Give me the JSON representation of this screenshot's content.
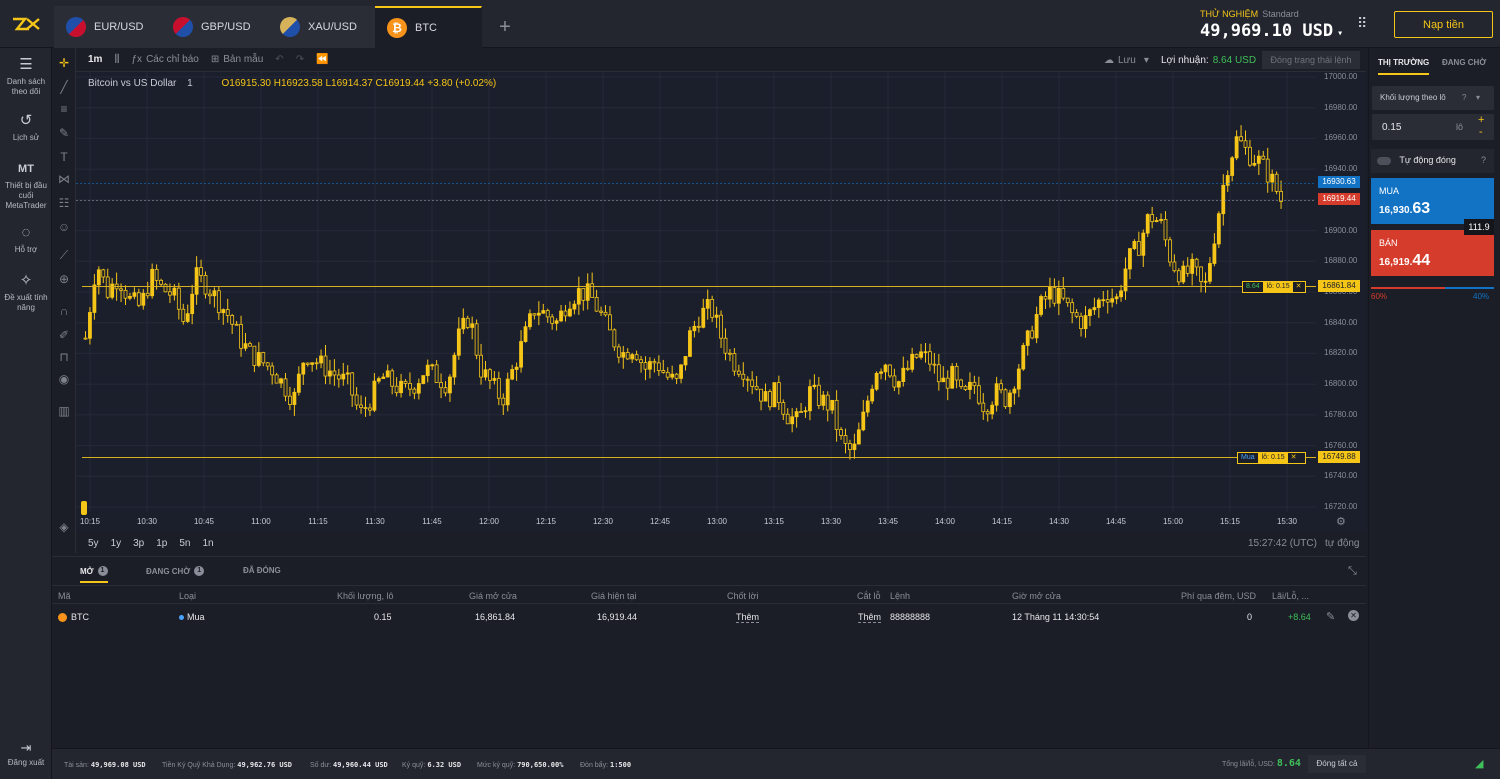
{
  "tabs": [
    {
      "label": "EUR/USD",
      "icon": "eu-us-flag-icon"
    },
    {
      "label": "GBP/USD",
      "icon": "uk-us-flag-icon"
    },
    {
      "label": "XAU/USD",
      "icon": "gold-us-flag-icon"
    },
    {
      "label": "BTC",
      "icon": "bitcoin-icon"
    }
  ],
  "account": {
    "mode": "THỬ NGHIỆM",
    "type": "Standard",
    "balance": "49,969.10 USD",
    "deposit_label": "Nạp tiền"
  },
  "nav": {
    "watchlist": "Danh sách theo dõi",
    "history": "Lịch sử",
    "mt_abbr": "MT",
    "mt_label": "Thiết bị đầu cuối MetaTrader",
    "support": "Hỗ trợ",
    "suggest": "Đề xuất tính năng",
    "logout": "Đăng xuất"
  },
  "toolbar": {
    "timeframe": "1m",
    "indicators": "Các chỉ báo",
    "templates": "Bản mẫu",
    "save": "Lưu",
    "profit_label": "Lợi nhuận:",
    "profit_value": "8.64 USD",
    "close_status": "Đóng trạng thái lệnh"
  },
  "chart_data": {
    "type": "candlestick",
    "title": "Bitcoin vs US Dollar",
    "interval": "1",
    "ohlc": {
      "o": "O16915.30",
      "h": "H16923.58",
      "l": "L16914.37",
      "c": "C16919.44",
      "chg": "+3.80 (+0.02%)"
    },
    "y_ticks": [
      "17000.00",
      "16980.00",
      "16960.00",
      "16940.00",
      "16920.00",
      "16900.00",
      "16880.00",
      "16860.00",
      "16840.00",
      "16820.00",
      "16800.00",
      "16780.00",
      "16760.00",
      "16740.00",
      "16720.00"
    ],
    "ylim": [
      16720,
      17000
    ],
    "x_ticks": [
      "10:15",
      "10:30",
      "10:45",
      "11:00",
      "11:15",
      "11:30",
      "11:45",
      "12:00",
      "12:15",
      "12:30",
      "12:45",
      "13:00",
      "13:15",
      "13:30",
      "13:45",
      "14:00",
      "14:15",
      "14:30",
      "14:45",
      "15:00",
      "15:15",
      "15:30"
    ],
    "bid_label": "16930.63",
    "ask_label": "16919.44",
    "tp_line": "16861.84",
    "entry_line": "16749.88",
    "tp_tag": {
      "profit": "8.64",
      "lot": "lô: 0.15"
    },
    "entry_tag": {
      "side": "Mua",
      "lot": "lô: 0.15"
    },
    "price_path": [
      16830,
      16880,
      16860,
      16870,
      16855,
      16850,
      16870,
      16862,
      16858,
      16840,
      16870,
      16865,
      16855,
      16845,
      16830,
      16820,
      16815,
      16810,
      16800,
      16790,
      16820,
      16815,
      16810,
      16805,
      16800,
      16780,
      16790,
      16805,
      16800,
      16795,
      16800,
      16810,
      16805,
      16800,
      16830,
      16845,
      16810,
      16800,
      16790,
      16810,
      16830,
      16850,
      16845,
      16840,
      16855,
      16860,
      16858,
      16845,
      16830,
      16820,
      16825,
      16810,
      16815,
      16805,
      16800,
      16830,
      16845,
      16850,
      16830,
      16815,
      16810,
      16800,
      16790,
      16795,
      16780,
      16775,
      16795,
      16790,
      16785,
      16760,
      16755,
      16780,
      16810,
      16815,
      16800,
      16810,
      16820,
      16815,
      16800,
      16805,
      16790,
      16800,
      16785,
      16795,
      16790,
      16810,
      16830,
      16850,
      16860,
      16855,
      16845,
      16840,
      16850,
      16860,
      16855,
      16880,
      16890,
      16910,
      16905,
      16880,
      16870,
      16875,
      16860,
      16900,
      16940,
      16960,
      16950,
      16945,
      16935,
      16920
    ]
  },
  "ranges": [
    "5y",
    "1y",
    "3p",
    "1p",
    "5n",
    "1n"
  ],
  "time_status": "15:27:42 (UTC)",
  "auto_label": "tự động",
  "right_panel": {
    "tab_market": "THỊ TRƯỜNG",
    "tab_pending": "ĐANG CHỜ",
    "volume_select": "Khối lượng theo lô",
    "lot_value": "0.15",
    "lot_unit": "lô",
    "auto_close": "Tự động đóng",
    "buy_label": "MUA",
    "buy_price_small": "16,930.",
    "buy_price_big": "63",
    "sell_label": "BÁN",
    "sell_price_small": "16,919.",
    "sell_price_big": "44",
    "spread": "111.9",
    "sentiment_sell": "60%",
    "sentiment_buy": "40%"
  },
  "bottom": {
    "tab_open": "MỞ",
    "tab_open_count": "1",
    "tab_pending": "ĐANG CHỜ",
    "tab_pending_count": "1",
    "tab_closed": "ĐÃ ĐÓNG",
    "headers": [
      "Mã",
      "Loại",
      "Khối lượng, lô",
      "Giá mở cửa",
      "Giá hiện tại",
      "Chốt lời",
      "Cắt lỗ",
      "Lệnh",
      "Giờ mở cửa",
      "Phí qua đêm, USD",
      "Lãi/Lỗ, ..."
    ],
    "row": {
      "symbol": "BTC",
      "side": "Mua",
      "volume": "0.15",
      "open": "16,861.84",
      "current": "16,919.44",
      "tp": "Thêm",
      "sl": "Thêm",
      "order": "88888888",
      "time": "12 Tháng 11 14:30:54",
      "swap": "0",
      "pl": "+8.64"
    }
  },
  "status": {
    "assets_label": "Tài sản:",
    "assets": "49,969.08 USD",
    "free_label": "Tiền Ký Quỹ Khả Dụng:",
    "free": "49,962.76 USD",
    "balance_label": "Số dư:",
    "balance": "49,960.44 USD",
    "margin_label": "Ký quỹ:",
    "margin": "6.32 USD",
    "level_label": "Mức ký quỹ:",
    "level": "790,650.00%",
    "leverage_label": "Đòn bẩy:",
    "leverage": "1:500",
    "total_label": "Tổng lãi/lỗ, USD:",
    "total": "8.64",
    "close_all": "Đóng tất cả"
  },
  "colors": {
    "accent": "#f5c518",
    "buy": "#1273c4",
    "sell": "#d63c2c",
    "profit": "#3fbf5a"
  }
}
